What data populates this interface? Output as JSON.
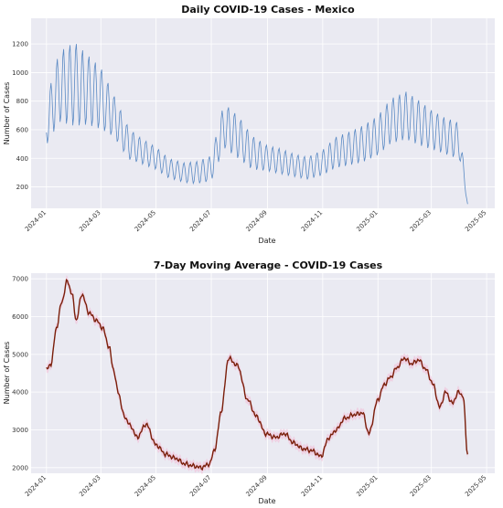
{
  "chart_data": [
    {
      "type": "line",
      "title": "Daily COVID-19 Cases - Mexico",
      "xlabel": "Date",
      "ylabel": "Number of Cases",
      "xlim": [
        "2023-12-15",
        "2025-05-10"
      ],
      "ylim": [
        50,
        1380
      ],
      "yticks": [
        200,
        400,
        600,
        800,
        1000,
        1200
      ],
      "xticks": [
        "2024-01",
        "2024-03",
        "2024-05",
        "2024-07",
        "2024-09",
        "2024-11",
        "2025-01",
        "2025-03",
        "2025-05"
      ],
      "grid": true,
      "colors": {
        "line": "#5b8ac4",
        "background": "#eaeaf2",
        "grid": "#ffffff"
      },
      "series": [
        {
          "x": [
            "2024-01-01",
            "2024-01-15",
            "2024-02-01",
            "2024-02-15",
            "2024-03-01",
            "2024-03-15",
            "2024-04-01",
            "2024-04-15",
            "2024-05-01",
            "2024-05-15",
            "2024-06-01",
            "2024-06-15",
            "2024-07-01",
            "2024-07-15",
            "2024-08-01",
            "2024-08-15",
            "2024-09-01",
            "2024-09-15",
            "2024-10-01",
            "2024-10-15",
            "2024-11-01",
            "2024-11-15",
            "2024-12-01",
            "2024-12-15",
            "2025-01-01",
            "2025-01-15",
            "2025-02-01",
            "2025-02-15",
            "2025-03-01",
            "2025-03-15",
            "2025-04-01",
            "2025-04-10"
          ],
          "y_base": [
            650,
            900,
            920,
            880,
            820,
            700,
            500,
            450,
            400,
            330,
            300,
            300,
            330,
            630,
            540,
            440,
            400,
            380,
            350,
            330,
            370,
            440,
            470,
            500,
            560,
            660,
            700,
            650,
            600,
            560,
            520,
            80
          ],
          "y_amplitude": [
            160,
            250,
            300,
            250,
            220,
            150,
            110,
            90,
            80,
            70,
            70,
            80,
            90,
            160,
            150,
            120,
            90,
            90,
            80,
            80,
            90,
            110,
            120,
            130,
            140,
            160,
            170,
            160,
            140,
            130,
            130,
            0
          ],
          "weekly_oscillation": true
        }
      ]
    },
    {
      "type": "line",
      "title": "7-Day Moving Average - COVID-19 Cases",
      "xlabel": "Date",
      "ylabel": "Number of Cases",
      "xlim": [
        "2023-12-15",
        "2025-05-10"
      ],
      "ylim": [
        1850,
        7150
      ],
      "yticks": [
        2000,
        3000,
        4000,
        5000,
        6000,
        7000
      ],
      "xticks": [
        "2024-01",
        "2024-03",
        "2024-05",
        "2024-07",
        "2024-09",
        "2024-11",
        "2025-01",
        "2025-03",
        "2025-05"
      ],
      "grid": true,
      "colors": {
        "line": "#7a1f0a",
        "band": "#f4b8d4",
        "background": "#eaeaf2",
        "grid": "#ffffff"
      },
      "series": [
        {
          "x": [
            "2024-01-01",
            "2024-01-06",
            "2024-01-12",
            "2024-01-18",
            "2024-01-24",
            "2024-01-29",
            "2024-02-03",
            "2024-02-09",
            "2024-02-17",
            "2024-02-25",
            "2024-03-03",
            "2024-03-10",
            "2024-03-15",
            "2024-03-20",
            "2024-03-27",
            "2024-04-03",
            "2024-04-10",
            "2024-04-20",
            "2024-05-01",
            "2024-05-12",
            "2024-05-22",
            "2024-06-02",
            "2024-06-10",
            "2024-06-20",
            "2024-06-29",
            "2024-07-05",
            "2024-07-12",
            "2024-07-20",
            "2024-07-30",
            "2024-08-10",
            "2024-08-20",
            "2024-08-30",
            "2024-09-10",
            "2024-09-20",
            "2024-09-30",
            "2024-10-10",
            "2024-10-20",
            "2024-10-30",
            "2024-11-08",
            "2024-11-16",
            "2024-11-25",
            "2024-12-05",
            "2024-12-15",
            "2024-12-22",
            "2025-01-01",
            "2025-01-08",
            "2025-01-15",
            "2025-01-22",
            "2025-01-30",
            "2025-02-07",
            "2025-02-15",
            "2025-02-23",
            "2025-03-03",
            "2025-03-10",
            "2025-03-17",
            "2025-03-24",
            "2025-03-31",
            "2025-04-05",
            "2025-04-10"
          ],
          "y": [
            4600,
            4750,
            5700,
            6400,
            6950,
            6600,
            5900,
            6600,
            6100,
            5900,
            5700,
            5200,
            4600,
            4000,
            3350,
            3100,
            2800,
            3150,
            2600,
            2350,
            2250,
            2100,
            2050,
            2000,
            2100,
            2500,
            3500,
            4900,
            4700,
            3800,
            3350,
            2900,
            2800,
            2900,
            2650,
            2500,
            2450,
            2300,
            2800,
            3000,
            3300,
            3400,
            3450,
            2900,
            3800,
            4200,
            4400,
            4650,
            4900,
            4750,
            4850,
            4600,
            4200,
            3600,
            4000,
            3700,
            4000,
            3900,
            2350
          ]
        }
      ]
    }
  ]
}
